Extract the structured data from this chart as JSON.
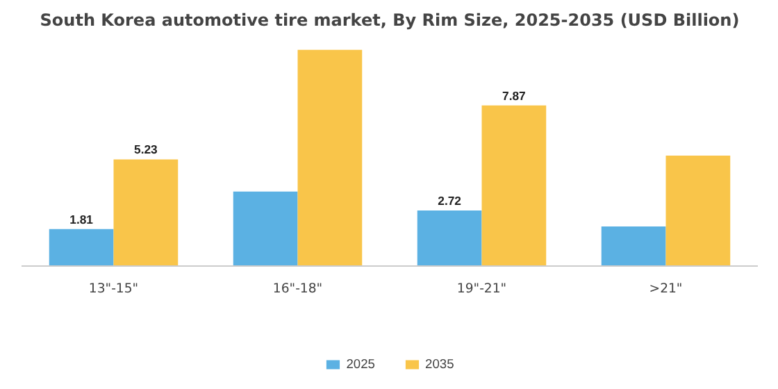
{
  "chart_data": {
    "type": "bar",
    "title": "South Korea automotive tire market, By Rim Size, 2025-2035 (USD Billion)",
    "categories": [
      "13\"-15\"",
      "16\"-18\"",
      "19\"-21\"",
      ">21\""
    ],
    "series": [
      {
        "name": "2025",
        "color": "#5bb1e3",
        "values": [
          1.81,
          3.65,
          2.72,
          1.94
        ],
        "value_labels": [
          "1.81",
          null,
          "2.72",
          null
        ]
      },
      {
        "name": "2035",
        "color": "#f9c54a",
        "values": [
          5.23,
          10.6,
          7.87,
          5.41
        ],
        "value_labels": [
          "5.23",
          null,
          "7.87",
          null
        ]
      }
    ],
    "legend": "bottom"
  }
}
